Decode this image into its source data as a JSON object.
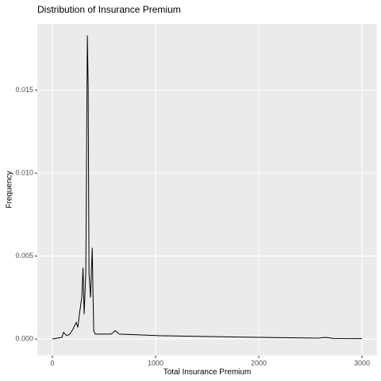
{
  "chart_data": {
    "type": "line",
    "title": "Distribution of Insurance Premium",
    "x_label": "Total Insurance Premium",
    "y_label": "Frequency",
    "xlim": [
      -146,
      3146
    ],
    "ylim": [
      -0.001,
      0.019
    ],
    "xticks": [
      0,
      1000,
      2000,
      3000
    ],
    "yticks": [
      {
        "value": 0,
        "label": "0.000"
      },
      {
        "value": 0.005,
        "label": "0.005"
      },
      {
        "value": 0.01,
        "label": "0.010"
      },
      {
        "value": 0.015,
        "label": "0.015"
      }
    ],
    "grid": true,
    "series": [
      {
        "color": "#000000",
        "x": [
          0,
          93,
          108,
          139,
          170,
          200,
          231,
          247,
          262,
          285,
          297,
          308,
          324,
          339,
          347,
          355,
          370,
          386,
          393,
          401,
          416,
          571,
          609,
          648,
          1033,
          1804,
          2575,
          2645,
          2729,
          3000
        ],
        "values": [
          0,
          0.0001,
          0.0004,
          0.0002,
          0.0003,
          0.0006,
          0.001,
          0.0007,
          0.0015,
          0.0025,
          0.0043,
          0.0015,
          0.004,
          0.0183,
          0.0152,
          0.004,
          0.0025,
          0.0055,
          0.003,
          0.0005,
          0.0003,
          0.0003,
          0.0005,
          0.0003,
          0.0002,
          0.00012,
          5e-05,
          0.0001,
          3e-05,
          2e-05
        ]
      }
    ]
  }
}
